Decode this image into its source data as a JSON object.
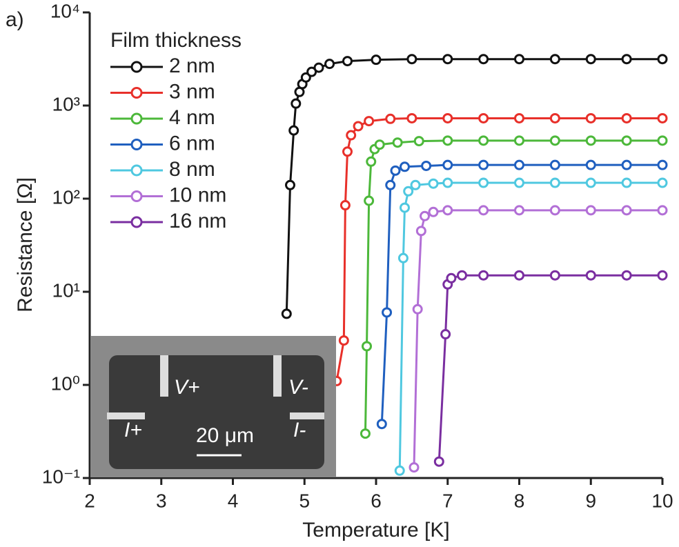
{
  "chart_data": {
    "type": "line",
    "panel_label": "a)",
    "x_label": "Temperature [K]",
    "y_label": "Resistance [Ω]",
    "legend_title": "Film thickness",
    "log_y": true,
    "xlim": [
      2,
      10
    ],
    "xticks": [
      2,
      3,
      4,
      5,
      6,
      7,
      8,
      9,
      10
    ],
    "ylim": [
      0.1,
      10000
    ],
    "yticks": [
      {
        "value": 0.1,
        "label": "10⁻¹"
      },
      {
        "value": 1,
        "label": "10⁰"
      },
      {
        "value": 10,
        "label": "10¹"
      },
      {
        "value": 100,
        "label": "10²"
      },
      {
        "value": 1000,
        "label": "10³"
      },
      {
        "value": 10000,
        "label": "10⁴"
      }
    ],
    "inset_labels": [
      "V+",
      "V-",
      "I+",
      "I-",
      "20 μm"
    ],
    "series": [
      {
        "name": "2 nm",
        "color": "#111111",
        "x": [
          4.75,
          4.8,
          4.85,
          4.88,
          4.93,
          4.97,
          5.02,
          5.1,
          5.2,
          5.35,
          5.6,
          6,
          6.5,
          7,
          7.5,
          8,
          8.5,
          9,
          9.5,
          10
        ],
        "values": [
          5.8,
          140,
          540,
          1050,
          1400,
          1700,
          2000,
          2300,
          2550,
          2800,
          3000,
          3100,
          3150,
          3150,
          3150,
          3150,
          3150,
          3150,
          3150,
          3150
        ]
      },
      {
        "name": "3 nm",
        "color": "#e8302a",
        "x": [
          5.45,
          5.55,
          5.57,
          5.6,
          5.65,
          5.75,
          5.9,
          6.2,
          6.5,
          7,
          7.5,
          8,
          8.5,
          9,
          9.5,
          10
        ],
        "values": [
          1.1,
          3,
          85,
          320,
          480,
          600,
          680,
          720,
          730,
          730,
          730,
          730,
          730,
          730,
          730,
          730
        ]
      },
      {
        "name": "4 nm",
        "color": "#4cb83a",
        "x": [
          5.85,
          5.87,
          5.9,
          5.93,
          5.98,
          6.05,
          6.3,
          6.6,
          7,
          7.5,
          8,
          8.5,
          9,
          9.5,
          10
        ],
        "values": [
          0.3,
          2.6,
          95,
          250,
          340,
          380,
          400,
          415,
          420,
          420,
          420,
          420,
          420,
          420,
          420
        ]
      },
      {
        "name": "6 nm",
        "color": "#1f5fbf",
        "x": [
          6.08,
          6.15,
          6.2,
          6.27,
          6.4,
          6.7,
          7,
          7.5,
          8,
          8.5,
          9,
          9.5,
          10
        ],
        "values": [
          0.38,
          6,
          140,
          200,
          220,
          225,
          230,
          230,
          230,
          230,
          230,
          230,
          230
        ]
      },
      {
        "name": "8 nm",
        "color": "#4fc8e0",
        "x": [
          6.33,
          6.38,
          6.4,
          6.45,
          6.55,
          6.8,
          7,
          7.5,
          8,
          8.5,
          9,
          9.5,
          10
        ],
        "values": [
          0.12,
          23,
          80,
          120,
          140,
          145,
          148,
          148,
          148,
          148,
          148,
          148,
          148
        ]
      },
      {
        "name": "10 nm",
        "color": "#b26fd6",
        "x": [
          6.53,
          6.58,
          6.63,
          6.68,
          6.8,
          7,
          7.5,
          8,
          8.5,
          9,
          9.5,
          10
        ],
        "values": [
          0.13,
          6.5,
          45,
          65,
          72,
          75,
          75,
          75,
          75,
          75,
          75,
          75
        ]
      },
      {
        "name": "16 nm",
        "color": "#7a2ea0",
        "x": [
          6.88,
          6.97,
          7,
          7.05,
          7.2,
          7.5,
          8,
          8.5,
          9,
          9.5,
          10
        ],
        "values": [
          0.15,
          3.5,
          12,
          14,
          15,
          15,
          15,
          15,
          15,
          15,
          15
        ]
      }
    ]
  }
}
